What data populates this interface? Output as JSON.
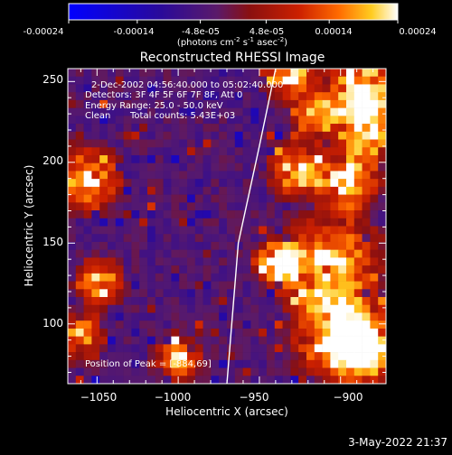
{
  "chart_data": {
    "type": "heatmap",
    "title": "Reconstructed RHESSI Image",
    "colorbar": {
      "ticks": [
        "-0.00024",
        "-0.00014",
        "-4.8e-05",
        "4.8e-05",
        "0.00014",
        "0.00024"
      ],
      "values": [
        -0.00024,
        -0.00014,
        -4.8e-05,
        4.8e-05,
        0.00014,
        0.00024
      ],
      "range": [
        -0.00024,
        0.00024
      ],
      "label_main": "(photons cm",
      "label_sup1": "-2",
      "label_mid1": " s",
      "label_sup2": "-1",
      "label_mid2": " asec",
      "label_sup3": "-2",
      "label_end": ")",
      "colors": [
        "#0000ff",
        "#3a0a8a",
        "#5a1a6a",
        "#8a1010",
        "#cc2000",
        "#ff6a00",
        "#ffcc20",
        "#ffffff"
      ]
    },
    "xlabel": "Heliocentric X (arcsec)",
    "ylabel": "Heliocentric Y (arcsec)",
    "xlim": [
      -1068,
      -872
    ],
    "ylim": [
      63,
      258
    ],
    "xticks": [
      -1050,
      -1000,
      -950,
      -900
    ],
    "xtick_labels": [
      "−1050",
      "−1000",
      "−950",
      "−900"
    ],
    "yticks": [
      100,
      150,
      200,
      250
    ],
    "ytick_labels": [
      "100",
      "150",
      "200",
      "250"
    ],
    "limb": [
      [
        -970,
        63
      ],
      [
        -963,
        150
      ],
      [
        -950,
        210
      ],
      [
        -940,
        258
      ]
    ],
    "overlay": {
      "time": "2-Dec-2002 04:56:40.000 to 05:02:40.000",
      "detectors": "Detectors: 3F 4F 5F 6F 7F 8F, Att 0",
      "energy": "Energy Range: 25.0 - 50.0 keV",
      "clean_label": "Clean",
      "counts": "Total counts: 5.43E+03",
      "peak": "Position of Peak = [-884,69]"
    }
  },
  "footer": {
    "timestamp": "3-May-2022 21:37"
  }
}
